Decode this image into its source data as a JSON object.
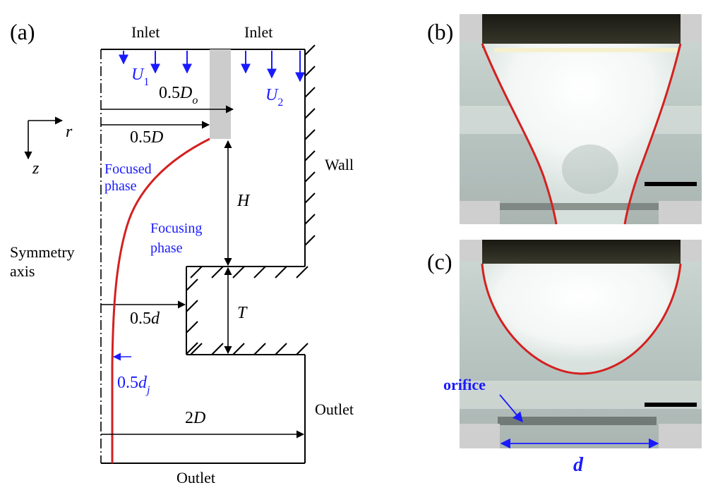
{
  "panels": {
    "a": {
      "label": "(a)"
    },
    "b": {
      "label": "(b)"
    },
    "c": {
      "label": "(c)"
    }
  },
  "schematic": {
    "inlet_left": "Inlet",
    "inlet_right": "Inlet",
    "u1_main": "U",
    "u1_sub": "1",
    "u2_main": "U",
    "u2_sub": "2",
    "do_half_num": "0.5",
    "do_half_main": "D",
    "do_half_sub": "o",
    "d_half_num": "0.5",
    "d_half_main": "D",
    "r_axis": "r",
    "z_axis": "z",
    "focused_line1": "Focused",
    "focused_line2": "phase",
    "focusing_line1": "Focusing",
    "focusing_line2": "phase",
    "wall": "Wall",
    "h_label": "H",
    "t_label": "T",
    "symmetry_line1": "Symmetry",
    "symmetry_line2": "axis",
    "orifice_half_num": "0.5",
    "orifice_half_main": "d",
    "jet_half_num": "0.5",
    "jet_half_main": "d",
    "jet_half_sub": "j",
    "outlet_width_num": "2",
    "outlet_width_main": "D",
    "outlet_right": "Outlet",
    "outlet_bottom": "Outlet"
  },
  "photo_c": {
    "orifice_label": "orifice",
    "d_label": "d"
  },
  "colors": {
    "interface": "#d42020",
    "annotation_blue": "#1a1aff",
    "line": "#000000",
    "tube_gray": "#cccccc"
  }
}
